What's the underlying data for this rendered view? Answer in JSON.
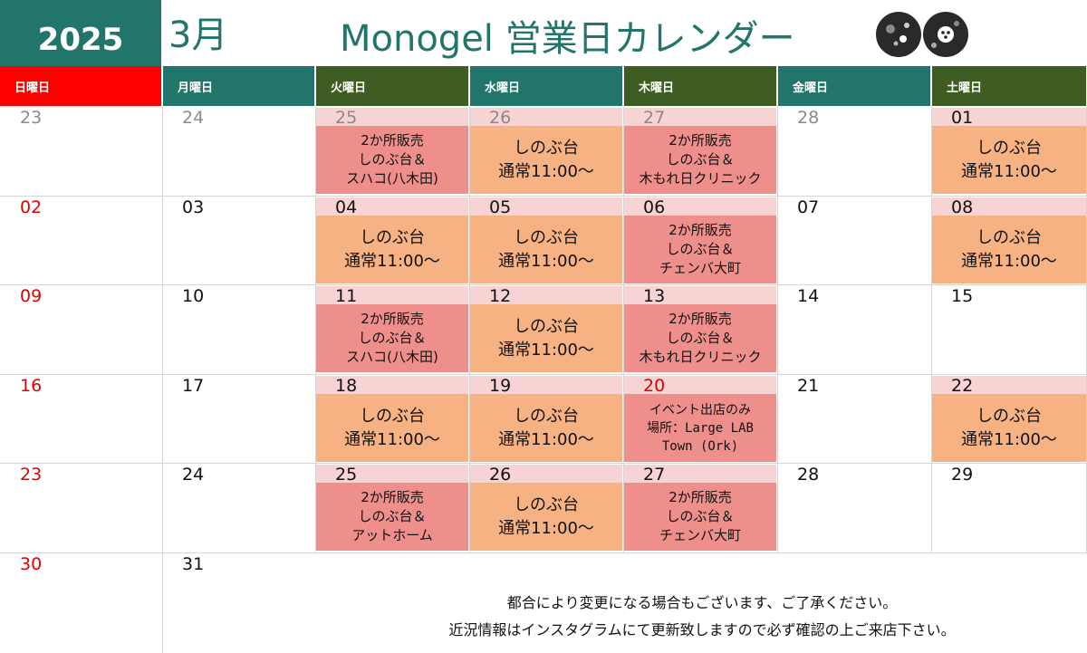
{
  "header": {
    "year": "2025",
    "month": "3月",
    "title": "Monogel 営業日カレンダー"
  },
  "colors": {
    "teal": "#22756a",
    "olive": "#3f5d23",
    "red": "#e00000",
    "shop": "#f6b283",
    "sale": "#ee8f8c",
    "datebg": "#f8d3d3"
  },
  "weekdays": [
    "日曜日",
    "月曜日",
    "火曜日",
    "水曜日",
    "木曜日",
    "金曜日",
    "土曜日"
  ],
  "weeks": [
    [
      {
        "date": "23",
        "color": "gray"
      },
      {
        "date": "24",
        "color": "gray"
      },
      {
        "date": "25",
        "color": "gray",
        "highlight": true,
        "event": {
          "type": "sale",
          "lines": [
            "2か所販売",
            "しのぶ台＆",
            "スハコ(八木田)"
          ]
        }
      },
      {
        "date": "26",
        "color": "gray",
        "highlight": true,
        "event": {
          "type": "shop",
          "lines": [
            "しのぶ台",
            "通常11:00〜"
          ]
        }
      },
      {
        "date": "27",
        "color": "gray",
        "highlight": true,
        "event": {
          "type": "sale",
          "lines": [
            "2か所販売",
            "しのぶ台＆",
            "木もれ日クリニック"
          ]
        }
      },
      {
        "date": "28",
        "color": "gray"
      },
      {
        "date": "01",
        "color": "black",
        "highlight": true,
        "event": {
          "type": "shop",
          "lines": [
            "しのぶ台",
            "通常11:00〜"
          ]
        }
      }
    ],
    [
      {
        "date": "02",
        "color": "red"
      },
      {
        "date": "03",
        "color": "black"
      },
      {
        "date": "04",
        "color": "black",
        "highlight": true,
        "event": {
          "type": "shop",
          "lines": [
            "しのぶ台",
            "通常11:00〜"
          ]
        }
      },
      {
        "date": "05",
        "color": "black",
        "highlight": true,
        "event": {
          "type": "shop",
          "lines": [
            "しのぶ台",
            "通常11:00〜"
          ]
        }
      },
      {
        "date": "06",
        "color": "black",
        "highlight": true,
        "event": {
          "type": "sale",
          "lines": [
            "2か所販売",
            "しのぶ台＆",
            "チェンバ大町"
          ]
        }
      },
      {
        "date": "07",
        "color": "black"
      },
      {
        "date": "08",
        "color": "black",
        "highlight": true,
        "event": {
          "type": "shop",
          "lines": [
            "しのぶ台",
            "通常11:00〜"
          ]
        }
      }
    ],
    [
      {
        "date": "09",
        "color": "red"
      },
      {
        "date": "10",
        "color": "black"
      },
      {
        "date": "11",
        "color": "black",
        "highlight": true,
        "event": {
          "type": "sale",
          "lines": [
            "2か所販売",
            "しのぶ台＆",
            "スハコ(八木田)"
          ]
        }
      },
      {
        "date": "12",
        "color": "black",
        "highlight": true,
        "event": {
          "type": "shop",
          "lines": [
            "しのぶ台",
            "通常11:00〜"
          ]
        }
      },
      {
        "date": "13",
        "color": "black",
        "highlight": true,
        "event": {
          "type": "sale",
          "lines": [
            "2か所販売",
            "しのぶ台＆",
            "木もれ日クリニック"
          ]
        }
      },
      {
        "date": "14",
        "color": "black"
      },
      {
        "date": "15",
        "color": "black"
      }
    ],
    [
      {
        "date": "16",
        "color": "red"
      },
      {
        "date": "17",
        "color": "black"
      },
      {
        "date": "18",
        "color": "black",
        "highlight": true,
        "event": {
          "type": "shop",
          "lines": [
            "しのぶ台",
            "通常11:00〜"
          ]
        }
      },
      {
        "date": "19",
        "color": "black",
        "highlight": true,
        "event": {
          "type": "shop",
          "lines": [
            "しのぶ台",
            "通常11:00〜"
          ]
        }
      },
      {
        "date": "20",
        "color": "red",
        "highlight": true,
        "event": {
          "type": "info",
          "lines": [
            "イベント出店のみ",
            "場所：Large LAB",
            "Town (Ork)"
          ]
        }
      },
      {
        "date": "21",
        "color": "black"
      },
      {
        "date": "22",
        "color": "black",
        "highlight": true,
        "event": {
          "type": "shop",
          "lines": [
            "しのぶ台",
            "通常11:00〜"
          ]
        }
      }
    ],
    [
      {
        "date": "23",
        "color": "red"
      },
      {
        "date": "24",
        "color": "black"
      },
      {
        "date": "25",
        "color": "black",
        "highlight": true,
        "event": {
          "type": "sale",
          "lines": [
            "2か所販売",
            "しのぶ台＆",
            "アットホーム"
          ]
        }
      },
      {
        "date": "26",
        "color": "black",
        "highlight": true,
        "event": {
          "type": "shop",
          "lines": [
            "しのぶ台",
            "通常11:00〜"
          ]
        }
      },
      {
        "date": "27",
        "color": "black",
        "highlight": true,
        "event": {
          "type": "sale",
          "lines": [
            "2か所販売",
            "しのぶ台＆",
            "チェンバ大町"
          ]
        }
      },
      {
        "date": "28",
        "color": "black"
      },
      {
        "date": "29",
        "color": "black"
      }
    ],
    [
      {
        "date": "30",
        "color": "red"
      },
      {
        "date": "31",
        "color": "black"
      }
    ]
  ],
  "footer": [
    "都合により変更になる場合もございます、ご了承ください。",
    "近況情報はインスタグラムにて更新致しますので必ず確認の上ご来店下さい。"
  ]
}
